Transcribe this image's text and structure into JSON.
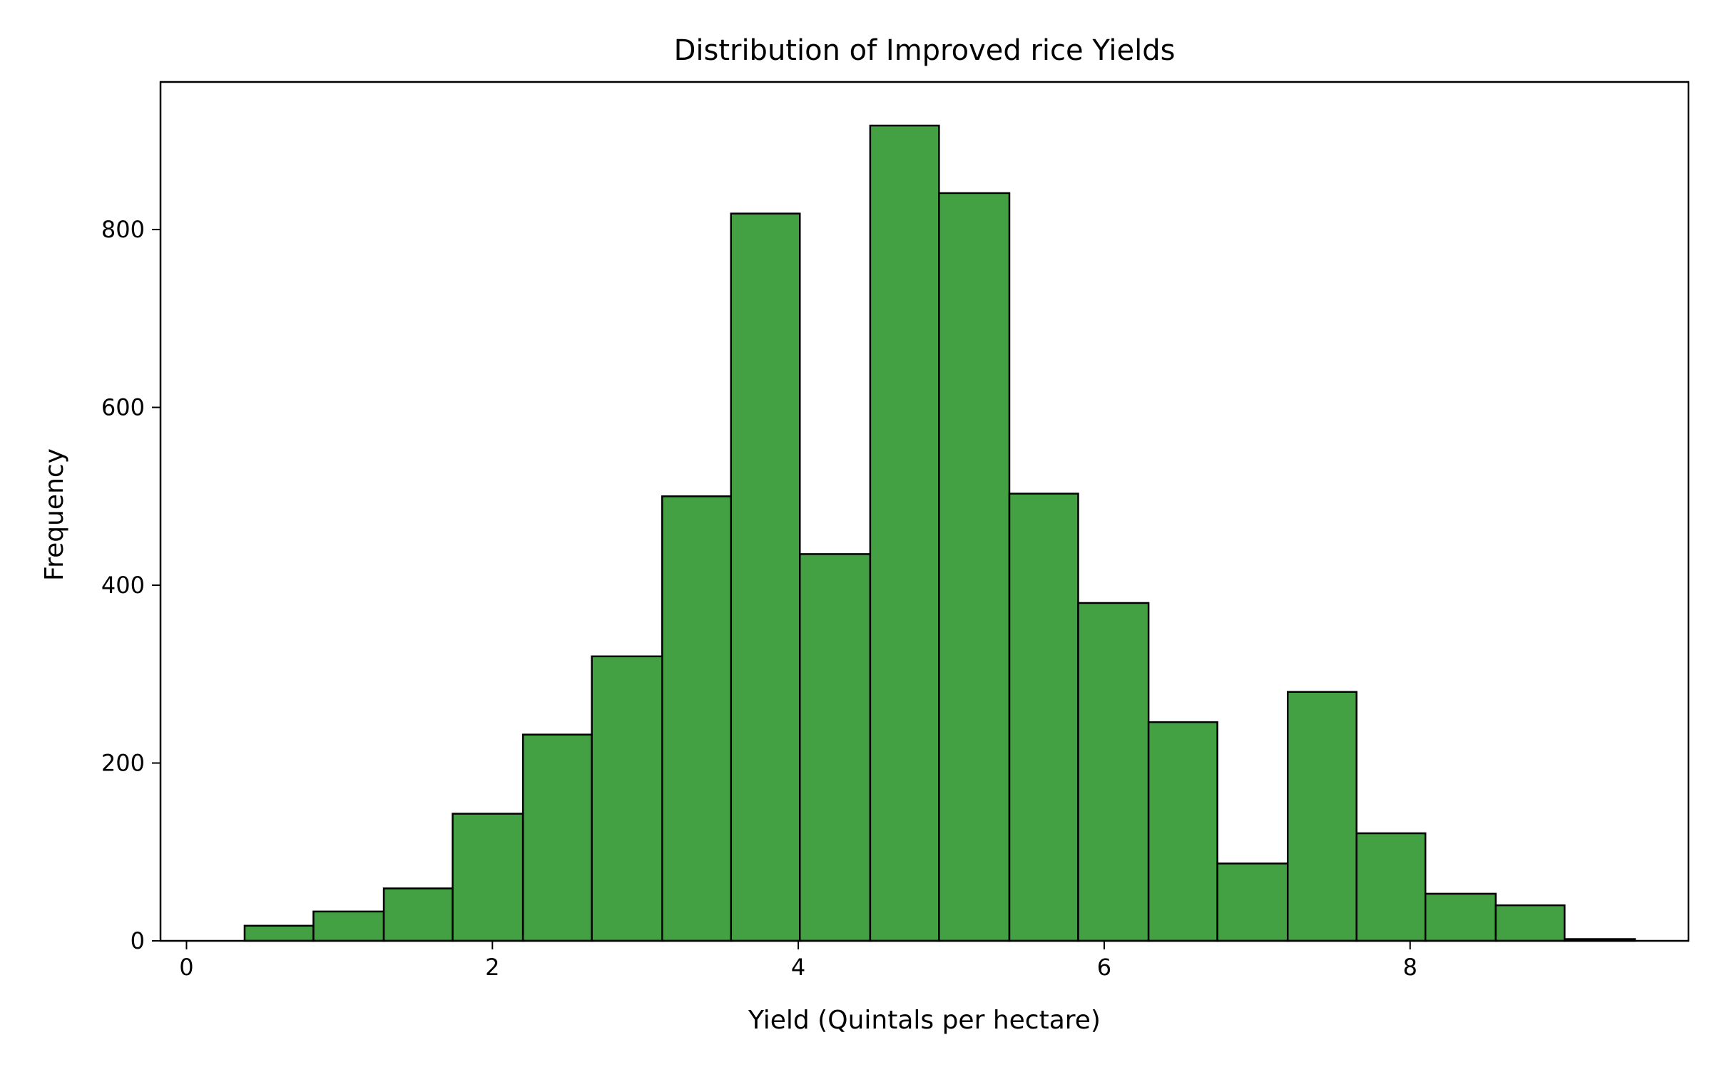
{
  "chart_data": {
    "type": "bar",
    "title": "Distribution of Improved rice Yields",
    "xlabel": "Yield (Quintals per hectare)",
    "ylabel": "Frequency",
    "xlim": [
      -0.17,
      9.82
    ],
    "ylim": [
      0,
      966
    ],
    "xticks": [
      0,
      2,
      4,
      6,
      8
    ],
    "yticks": [
      0,
      200,
      400,
      600,
      800
    ],
    "grid": false,
    "bar_color": "#43a143",
    "edge_color": "#000000",
    "bins": [
      {
        "x0": 0.38,
        "x1": 0.83,
        "value": 17
      },
      {
        "x0": 0.83,
        "x1": 1.29,
        "value": 33
      },
      {
        "x0": 1.29,
        "x1": 1.74,
        "value": 59
      },
      {
        "x0": 1.74,
        "x1": 2.2,
        "value": 143
      },
      {
        "x0": 2.2,
        "x1": 2.65,
        "value": 232
      },
      {
        "x0": 2.65,
        "x1": 3.11,
        "value": 320
      },
      {
        "x0": 3.11,
        "x1": 3.56,
        "value": 500
      },
      {
        "x0": 3.56,
        "x1": 4.01,
        "value": 818
      },
      {
        "x0": 4.01,
        "x1": 4.47,
        "value": 435
      },
      {
        "x0": 4.47,
        "x1": 4.92,
        "value": 917
      },
      {
        "x0": 4.92,
        "x1": 5.38,
        "value": 841
      },
      {
        "x0": 5.38,
        "x1": 5.83,
        "value": 503
      },
      {
        "x0": 5.83,
        "x1": 6.29,
        "value": 380
      },
      {
        "x0": 6.29,
        "x1": 6.74,
        "value": 246
      },
      {
        "x0": 6.74,
        "x1": 7.2,
        "value": 87
      },
      {
        "x0": 7.2,
        "x1": 7.65,
        "value": 280
      },
      {
        "x0": 7.65,
        "x1": 8.1,
        "value": 121
      },
      {
        "x0": 8.1,
        "x1": 8.56,
        "value": 53
      },
      {
        "x0": 8.56,
        "x1": 9.01,
        "value": 40
      },
      {
        "x0": 9.01,
        "x1": 9.47,
        "value": 2
      }
    ]
  }
}
